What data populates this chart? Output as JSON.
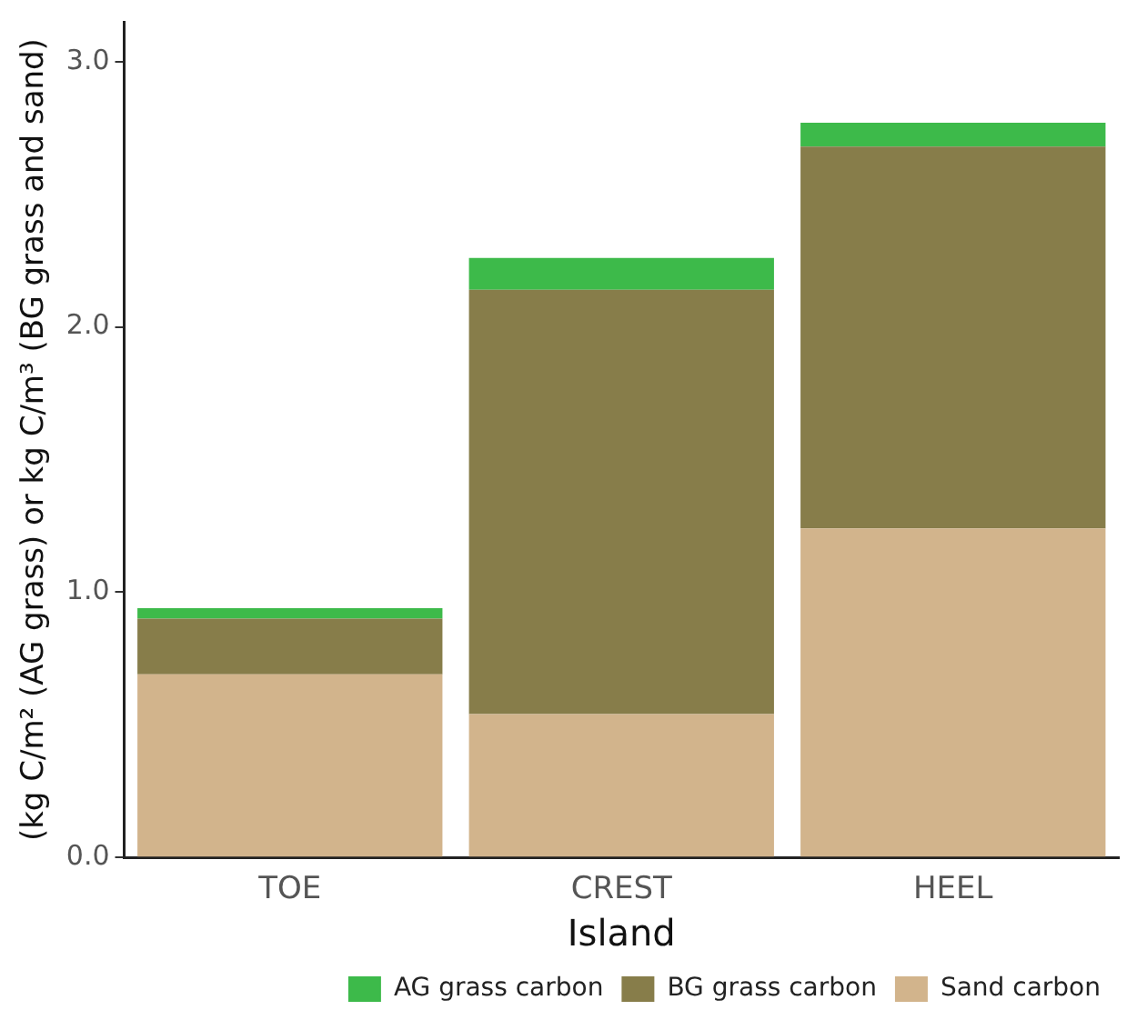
{
  "chart_data": {
    "type": "bar",
    "stacked": true,
    "xlabel": "Island",
    "ylabel": "(kg C/m² (AG grass) or kg C/m³ (BG grass and sand)",
    "categories": [
      "TOE",
      "CREST",
      "HEEL"
    ],
    "series": [
      {
        "name": "Sand carbon",
        "color": "#d2b48c",
        "values": [
          0.69,
          0.54,
          1.24
        ]
      },
      {
        "name": "BG grass carbon",
        "color": "#877d4a",
        "values": [
          0.21,
          1.6,
          1.44
        ]
      },
      {
        "name": "AG grass carbon",
        "color": "#3dba4a",
        "values": [
          0.04,
          0.12,
          0.09
        ]
      }
    ],
    "ylim": [
      0,
      3.15
    ],
    "yticks": [
      {
        "value": 0,
        "label": "0.0"
      },
      {
        "value": 1,
        "label": "1.0"
      },
      {
        "value": 2,
        "label": "2.0"
      },
      {
        "value": 3,
        "label": "3.0"
      }
    ],
    "grid": false,
    "legend": "bottom"
  }
}
